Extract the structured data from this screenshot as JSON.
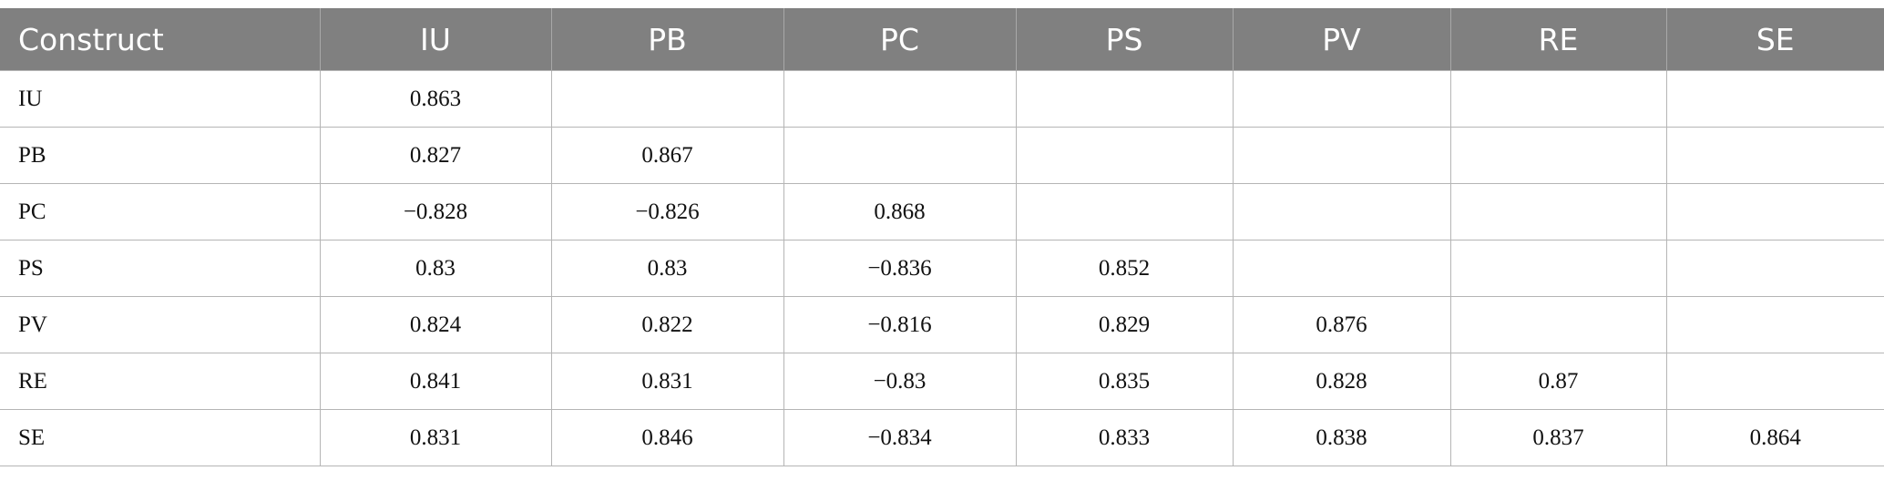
{
  "table": {
    "header": [
      "Construct",
      "IU",
      "PB",
      "PC",
      "PS",
      "PV",
      "RE",
      "SE"
    ],
    "rows": [
      {
        "label": "IU",
        "cells": [
          "0.863"
        ]
      },
      {
        "label": "PB",
        "cells": [
          "0.827",
          "0.867"
        ]
      },
      {
        "label": "PC",
        "cells": [
          "−0.828",
          "−0.826",
          "0.868"
        ]
      },
      {
        "label": "PS",
        "cells": [
          "0.83",
          "0.83",
          "−0.836",
          "0.852"
        ]
      },
      {
        "label": "PV",
        "cells": [
          "0.824",
          "0.822",
          "−0.816",
          "0.829",
          "0.876"
        ]
      },
      {
        "label": "RE",
        "cells": [
          "0.841",
          "0.831",
          "−0.83",
          "0.835",
          "0.828",
          "0.87"
        ]
      },
      {
        "label": "SE",
        "cells": [
          "0.831",
          "0.846",
          "−0.834",
          "0.833",
          "0.838",
          "0.837",
          "0.864"
        ]
      }
    ]
  }
}
